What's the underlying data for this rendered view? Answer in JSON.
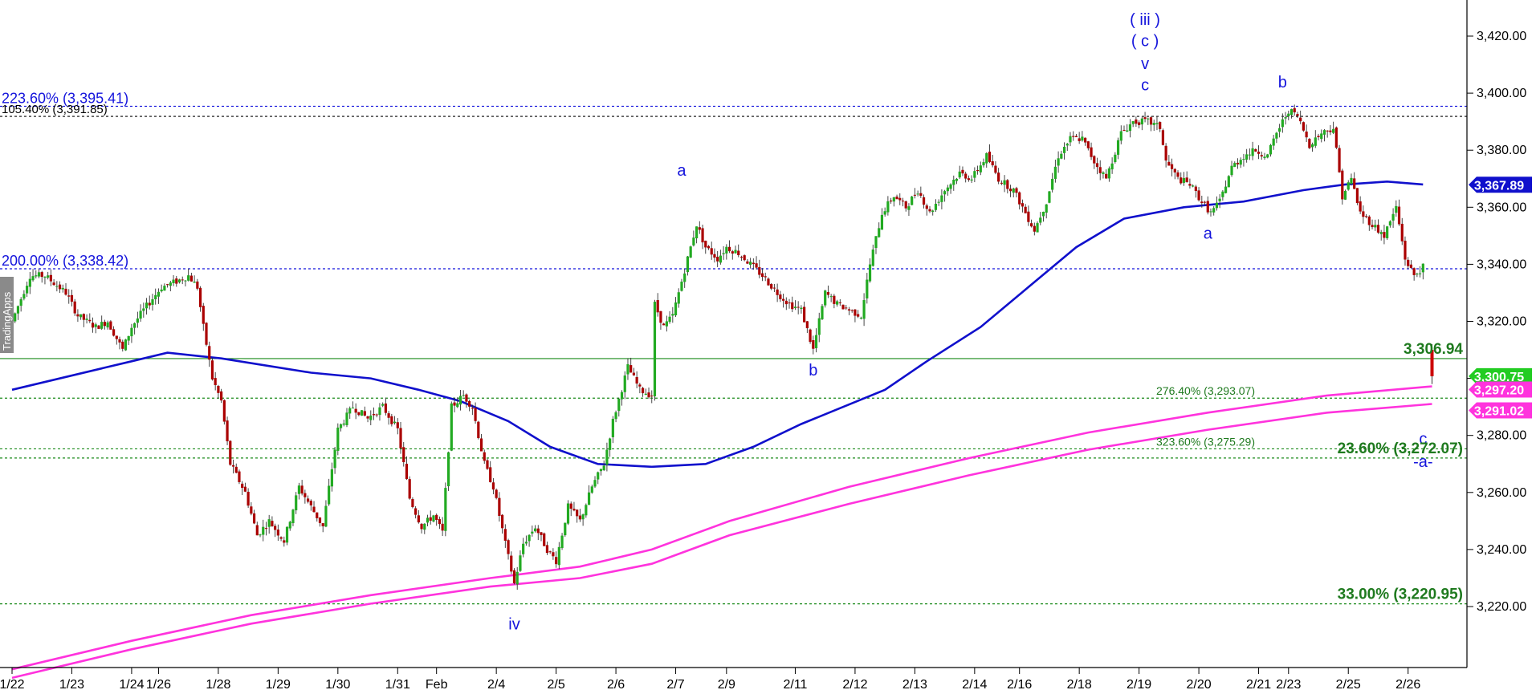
{
  "watermark": "TradingApps",
  "chart_data": {
    "type": "candlestick",
    "y_axis": {
      "min": 3200,
      "max": 3430,
      "ticks": [
        3220,
        3240,
        3260,
        3280,
        3300,
        3320,
        3340,
        3360,
        3380,
        3400,
        3420
      ],
      "tick_labels": [
        "3,220.00",
        "3,240.00",
        "3,260.00",
        "3,280.00",
        "3,300.00",
        "3,320.00",
        "3,340.00",
        "3,360.00",
        "3,380.00",
        "3,400.00",
        "3,420.00"
      ]
    },
    "x_axis": {
      "labels": [
        "1/22",
        "1/23",
        "1/24",
        "1/26",
        "1/28",
        "1/29",
        "1/30",
        "1/31",
        "Feb",
        "2/4",
        "2/5",
        "2/6",
        "2/7",
        "2/9",
        "2/11",
        "2/12",
        "2/13",
        "2/14",
        "2/16",
        "2/18",
        "2/19",
        "2/20",
        "2/21",
        "2/23",
        "2/25",
        "2/26"
      ],
      "label_positions": [
        0,
        1,
        2,
        2.45,
        3.45,
        4.45,
        5.45,
        6.45,
        7.1,
        8.1,
        9.1,
        10.1,
        11.1,
        11.95,
        13.1,
        14.1,
        15.1,
        16.1,
        16.85,
        17.85,
        18.85,
        19.85,
        20.85,
        21.35,
        22.35,
        23.35
      ]
    },
    "price_path": [
      [
        0,
        3320
      ],
      [
        0.3,
        3336
      ],
      [
        0.55,
        3336
      ],
      [
        0.9,
        3330
      ],
      [
        1.1,
        3322
      ],
      [
        1.4,
        3318
      ],
      [
        1.6,
        3320
      ],
      [
        1.85,
        3310
      ],
      [
        2.0,
        3318
      ],
      [
        2.2,
        3324
      ],
      [
        2.5,
        3332
      ],
      [
        2.75,
        3334
      ],
      [
        2.95,
        3336
      ],
      [
        3.1,
        3332
      ],
      [
        3.2,
        3318
      ],
      [
        3.35,
        3300
      ],
      [
        3.5,
        3292
      ],
      [
        3.65,
        3270
      ],
      [
        3.9,
        3260
      ],
      [
        4.1,
        3245
      ],
      [
        4.3,
        3250
      ],
      [
        4.55,
        3243
      ],
      [
        4.8,
        3262
      ],
      [
        5.0,
        3255
      ],
      [
        5.2,
        3248
      ],
      [
        5.45,
        3282
      ],
      [
        5.7,
        3290
      ],
      [
        5.95,
        3286
      ],
      [
        6.2,
        3290
      ],
      [
        6.45,
        3282
      ],
      [
        6.65,
        3258
      ],
      [
        6.85,
        3248
      ],
      [
        7.05,
        3252
      ],
      [
        7.2,
        3246
      ],
      [
        7.35,
        3290
      ],
      [
        7.55,
        3294
      ],
      [
        7.7,
        3290
      ],
      [
        7.9,
        3270
      ],
      [
        8.05,
        3262
      ],
      [
        8.25,
        3242
      ],
      [
        8.4,
        3228
      ],
      [
        8.55,
        3242
      ],
      [
        8.75,
        3248
      ],
      [
        8.95,
        3240
      ],
      [
        9.1,
        3236
      ],
      [
        9.3,
        3255
      ],
      [
        9.5,
        3250
      ],
      [
        9.7,
        3262
      ],
      [
        9.9,
        3270
      ],
      [
        10.05,
        3285
      ],
      [
        10.3,
        3304
      ],
      [
        10.5,
        3296
      ],
      [
        10.7,
        3294
      ],
      [
        10.75,
        3326
      ],
      [
        10.9,
        3318
      ],
      [
        11.05,
        3322
      ],
      [
        11.2,
        3334
      ],
      [
        11.35,
        3346
      ],
      [
        11.45,
        3354
      ],
      [
        11.6,
        3346
      ],
      [
        11.8,
        3342
      ],
      [
        11.95,
        3346
      ],
      [
        12.15,
        3344
      ],
      [
        12.35,
        3340
      ],
      [
        12.55,
        3336
      ],
      [
        12.8,
        3330
      ],
      [
        13.0,
        3326
      ],
      [
        13.2,
        3324
      ],
      [
        13.4,
        3310
      ],
      [
        13.6,
        3330
      ],
      [
        13.8,
        3326
      ],
      [
        14.0,
        3324
      ],
      [
        14.2,
        3322
      ],
      [
        14.35,
        3340
      ],
      [
        14.55,
        3358
      ],
      [
        14.75,
        3364
      ],
      [
        14.95,
        3360
      ],
      [
        15.15,
        3366
      ],
      [
        15.35,
        3358
      ],
      [
        15.6,
        3366
      ],
      [
        15.85,
        3372
      ],
      [
        16.05,
        3370
      ],
      [
        16.3,
        3378
      ],
      [
        16.5,
        3370
      ],
      [
        16.75,
        3366
      ],
      [
        16.95,
        3358
      ],
      [
        17.1,
        3352
      ],
      [
        17.3,
        3362
      ],
      [
        17.5,
        3378
      ],
      [
        17.7,
        3384
      ],
      [
        17.9,
        3384
      ],
      [
        18.1,
        3376
      ],
      [
        18.3,
        3370
      ],
      [
        18.55,
        3386
      ],
      [
        18.75,
        3390
      ],
      [
        19.0,
        3390
      ],
      [
        19.2,
        3388
      ],
      [
        19.3,
        3376
      ],
      [
        19.5,
        3370
      ],
      [
        19.7,
        3368
      ],
      [
        19.9,
        3362
      ],
      [
        20.05,
        3358
      ],
      [
        20.2,
        3362
      ],
      [
        20.4,
        3374
      ],
      [
        20.6,
        3378
      ],
      [
        20.8,
        3380
      ],
      [
        21.0,
        3378
      ],
      [
        21.15,
        3386
      ],
      [
        21.35,
        3394
      ],
      [
        21.5,
        3392
      ],
      [
        21.7,
        3382
      ],
      [
        21.9,
        3386
      ],
      [
        22.1,
        3388
      ],
      [
        22.25,
        3364
      ],
      [
        22.4,
        3370
      ],
      [
        22.55,
        3358
      ],
      [
        22.75,
        3354
      ],
      [
        22.95,
        3350
      ],
      [
        23.15,
        3360
      ],
      [
        23.3,
        3342
      ],
      [
        23.45,
        3336
      ],
      [
        23.6,
        3339
      ]
    ],
    "last_bar": {
      "x": 23.75,
      "open": 3310,
      "high": 3312,
      "low": 3298,
      "close": 3300.75
    },
    "moving_averages": [
      {
        "color": "#1010cc",
        "last_value": "3,367.89",
        "points": [
          [
            0,
            3296
          ],
          [
            2.0,
            3306
          ],
          [
            2.6,
            3309
          ],
          [
            3.5,
            3307
          ],
          [
            5.0,
            3302
          ],
          [
            6.0,
            3300
          ],
          [
            6.8,
            3296
          ],
          [
            7.5,
            3292
          ],
          [
            8.3,
            3285
          ],
          [
            9.0,
            3276
          ],
          [
            9.8,
            3270
          ],
          [
            10.7,
            3269
          ],
          [
            11.6,
            3270
          ],
          [
            12.4,
            3276
          ],
          [
            13.2,
            3284
          ],
          [
            13.9,
            3290
          ],
          [
            14.6,
            3296
          ],
          [
            15.3,
            3306
          ],
          [
            16.2,
            3318
          ],
          [
            17.0,
            3332
          ],
          [
            17.8,
            3346
          ],
          [
            18.6,
            3356
          ],
          [
            19.6,
            3360
          ],
          [
            20.6,
            3362
          ],
          [
            21.6,
            3366
          ],
          [
            22.3,
            3368
          ],
          [
            23.0,
            3369
          ],
          [
            23.6,
            3368
          ]
        ]
      },
      {
        "color": "#ff33dd",
        "last_value": "3,297.20",
        "points": [
          [
            0,
            3198
          ],
          [
            2,
            3208
          ],
          [
            4,
            3217
          ],
          [
            6,
            3224
          ],
          [
            8,
            3230
          ],
          [
            9.5,
            3234
          ],
          [
            10.7,
            3240
          ],
          [
            12,
            3250
          ],
          [
            14,
            3262
          ],
          [
            16,
            3272
          ],
          [
            18,
            3281
          ],
          [
            20,
            3288
          ],
          [
            22,
            3294
          ],
          [
            23.75,
            3297.2
          ]
        ]
      },
      {
        "color": "#ff33dd",
        "last_value": "3,291.02",
        "points": [
          [
            0,
            3195
          ],
          [
            2,
            3205
          ],
          [
            4,
            3214
          ],
          [
            6,
            3221
          ],
          [
            8,
            3227
          ],
          [
            9.5,
            3230
          ],
          [
            10.7,
            3235
          ],
          [
            12,
            3245
          ],
          [
            14,
            3256
          ],
          [
            16,
            3266
          ],
          [
            18,
            3275
          ],
          [
            20,
            3282
          ],
          [
            22,
            3288
          ],
          [
            23.75,
            3291.02
          ]
        ]
      }
    ],
    "horizontal_lines": [
      {
        "value": 3395.41,
        "label": "223.60% (3,395.41)",
        "color": "#1414dc",
        "style": "dotted",
        "label_pos": "left",
        "label_class": "fibb"
      },
      {
        "value": 3391.85,
        "label": "105.40% (3,391.85)",
        "color": "#000000",
        "style": "dotted",
        "label_pos": "left",
        "label_class": "fibk"
      },
      {
        "value": 3338.42,
        "label": "200.00% (3,338.42)",
        "color": "#1414dc",
        "style": "dotted",
        "label_pos": "left",
        "label_class": "fibb"
      },
      {
        "value": 3306.94,
        "label": "3,306.94",
        "color": "#1a8a1a",
        "style": "solid",
        "label_pos": "right",
        "label_class": "fibg"
      },
      {
        "value": 3293.07,
        "label": "276.40% (3,293.07)",
        "color": "#1a8a1a",
        "style": "dotted",
        "label_pos": "right-small",
        "label_class": "fibgs"
      },
      {
        "value": 3275.29,
        "label": "323.60% (3,275.29)",
        "color": "#1a8a1a",
        "style": "dotted",
        "label_pos": "right-small",
        "label_class": "fibgs"
      },
      {
        "value": 3272.07,
        "label": "23.60% (3,272.07)",
        "color": "#1a8a1a",
        "style": "dotted",
        "label_pos": "right",
        "label_class": "fibg"
      },
      {
        "value": 3220.95,
        "label": "33.00% (3,220.95)",
        "color": "#1a8a1a",
        "style": "dotted",
        "label_pos": "right",
        "label_class": "fibg"
      }
    ],
    "wave_labels": [
      {
        "text": "( iii )",
        "x": 18.95,
        "y": 3424
      },
      {
        "text": "( c )",
        "x": 18.95,
        "y": 3416.5
      },
      {
        "text": "v",
        "x": 18.95,
        "y": 3408.5
      },
      {
        "text": "c",
        "x": 18.95,
        "y": 3401
      },
      {
        "text": "b",
        "x": 21.25,
        "y": 3402
      },
      {
        "text": "a",
        "x": 11.2,
        "y": 3371
      },
      {
        "text": "a",
        "x": 20.0,
        "y": 3349
      },
      {
        "text": "b",
        "x": 13.4,
        "y": 3301
      },
      {
        "text": "iv",
        "x": 8.4,
        "y": 3212
      },
      {
        "text": "c",
        "x": 23.6,
        "y": 3277
      },
      {
        "text": "-a-",
        "x": 23.6,
        "y": 3269
      }
    ],
    "price_boxes": [
      {
        "label": "3,367.89",
        "value": 3367.89,
        "bg": "#1010cc"
      },
      {
        "label": "3,300.75",
        "value": 3300.75,
        "bg": "#22cc22"
      },
      {
        "label": "3,297.20",
        "value": 3297.2,
        "bg": "#ff33dd"
      },
      {
        "label": "3,291.02",
        "value": 3291.02,
        "bg": "#ff33dd"
      }
    ]
  }
}
